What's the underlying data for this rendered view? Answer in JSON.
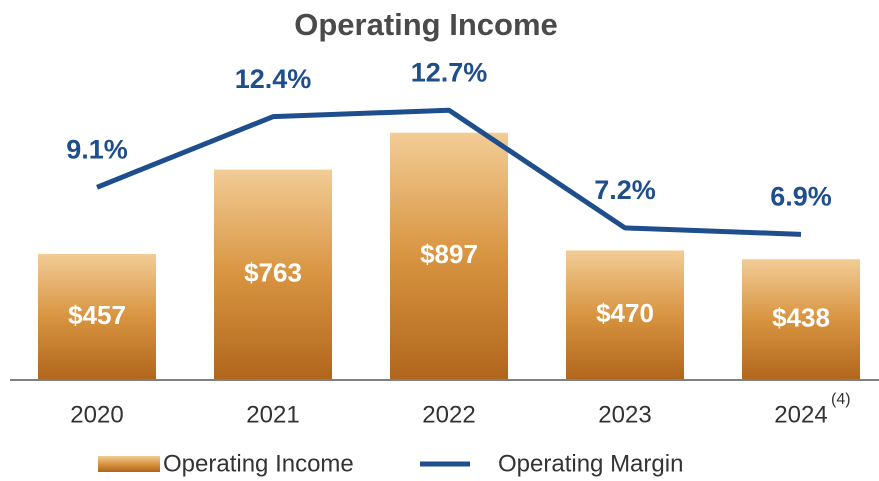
{
  "chart_data": {
    "type": "bar_line",
    "title": "Operating Income",
    "categories": [
      "2020",
      "2021",
      "2022",
      "2023",
      "2024"
    ],
    "category_notes": [
      null,
      null,
      null,
      null,
      "(4)"
    ],
    "series": [
      {
        "name": "Operating Income",
        "type": "bar",
        "color": "#c07a2a",
        "values": [
          457,
          763,
          897,
          470,
          438
        ],
        "value_labels": [
          "$457",
          "$763",
          "$897",
          "$470",
          "$438"
        ]
      },
      {
        "name": "Operating Margin",
        "type": "line",
        "color": "#1f4e8c",
        "values": [
          9.1,
          12.4,
          12.7,
          7.2,
          6.9
        ],
        "value_labels": [
          "9.1%",
          "12.4%",
          "12.7%",
          "7.2%",
          "6.9%"
        ]
      }
    ]
  }
}
